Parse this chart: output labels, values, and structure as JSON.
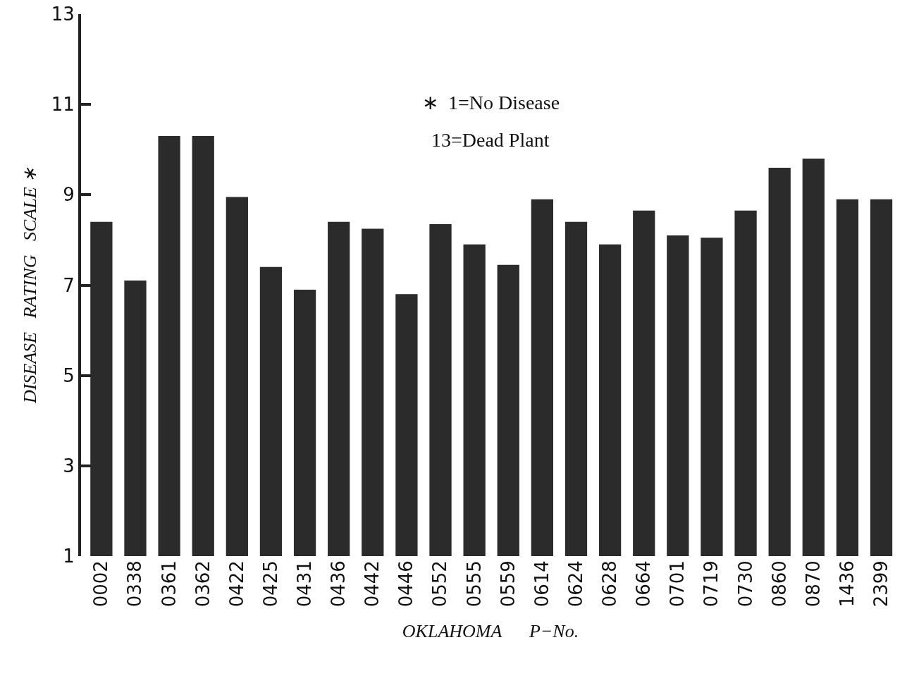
{
  "chart_data": {
    "type": "bar",
    "xlabel": "OKLAHOMA      P−No.",
    "ylabel": "DISEASE   RATING   SCALE ∗",
    "annotations": [
      "∗  1=No Disease",
      "13=Dead Plant"
    ],
    "categories": [
      "0002",
      "0338",
      "0361",
      "0362",
      "0422",
      "0425",
      "0431",
      "0436",
      "0442",
      "0446",
      "0552",
      "0555",
      "0559",
      "0614",
      "0624",
      "0628",
      "0664",
      "0701",
      "0719",
      "0730",
      "0860",
      "0870",
      "1436",
      "2399"
    ],
    "values": [
      8.4,
      7.1,
      10.3,
      10.3,
      8.95,
      7.4,
      6.9,
      8.4,
      8.25,
      6.8,
      8.35,
      7.9,
      7.45,
      8.9,
      8.4,
      7.9,
      8.65,
      8.1,
      8.05,
      8.65,
      9.6,
      9.8,
      8.9,
      8.9
    ],
    "color": "#2b2b2b",
    "ylim": [
      1,
      13
    ],
    "yticks": [
      1,
      3,
      5,
      7,
      9,
      11,
      13
    ],
    "grid": false
  }
}
